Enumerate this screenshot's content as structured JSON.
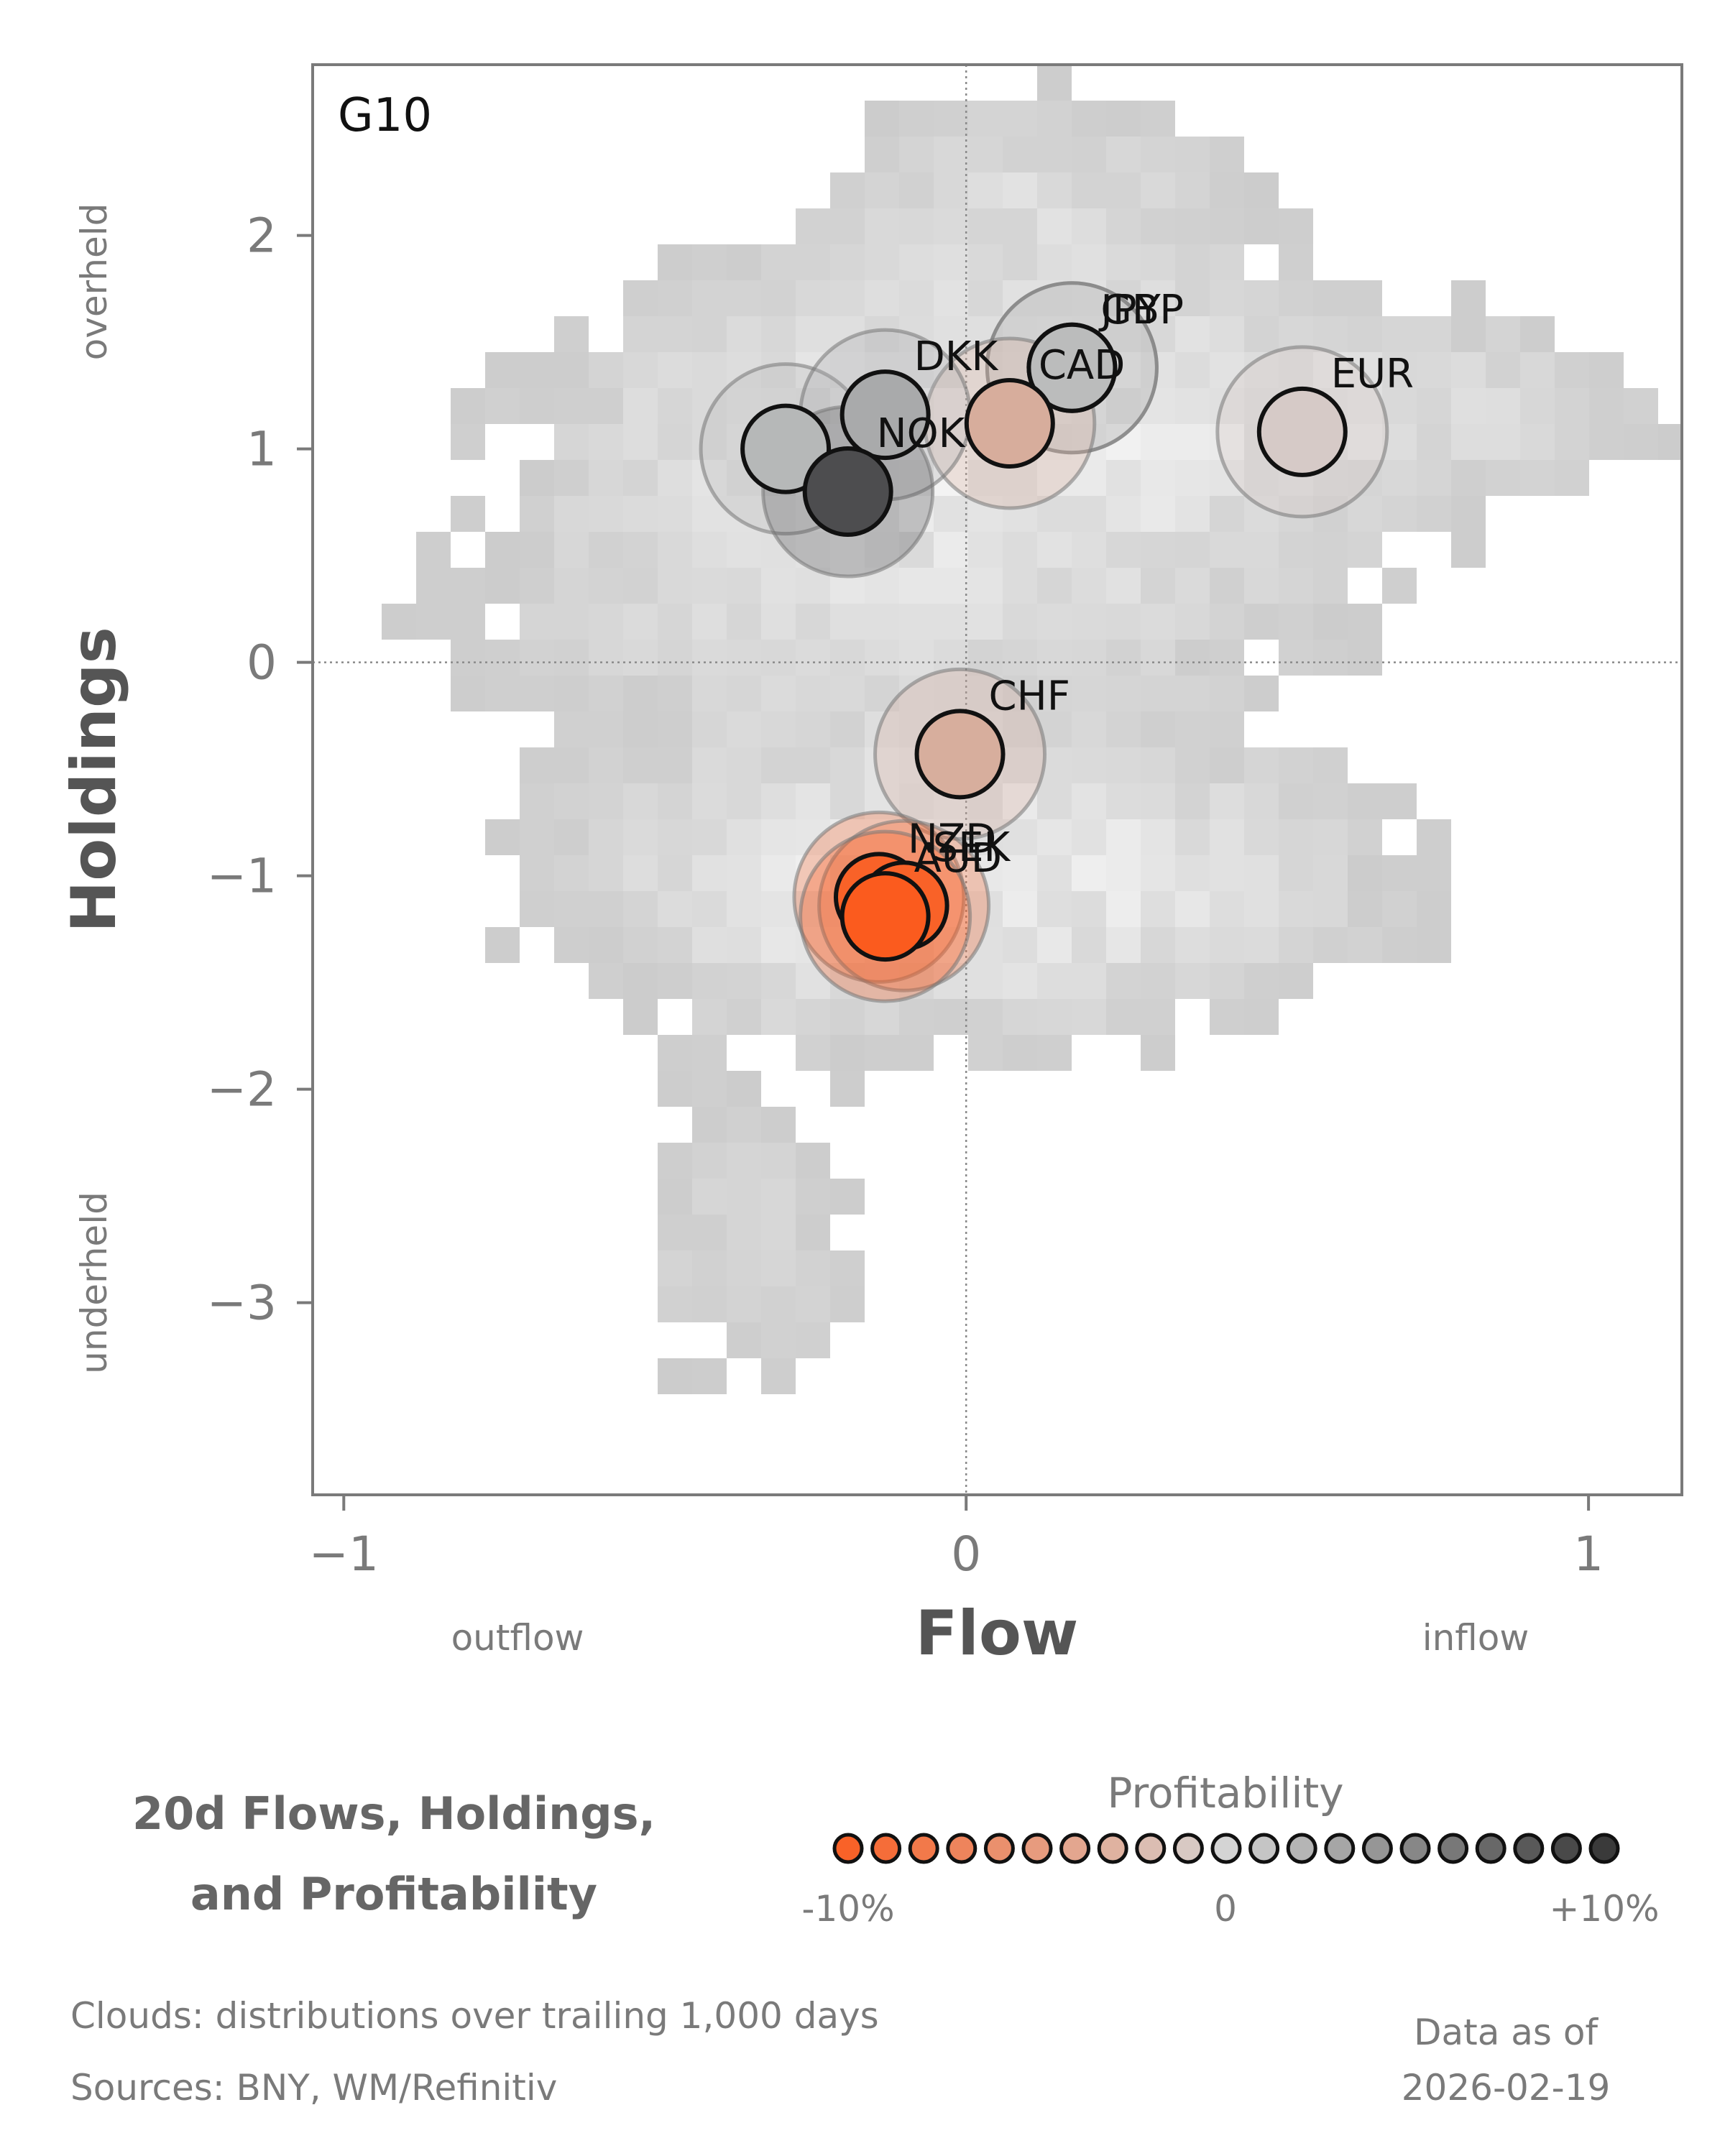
{
  "chart_data": {
    "type": "scatter",
    "panel_label": "G10",
    "xlabel": "Flow",
    "ylabel": "Holdings",
    "x_direction_labels": {
      "negative": "outflow",
      "positive": "inflow"
    },
    "y_direction_labels": {
      "positive": "overheld",
      "negative": "underheld"
    },
    "xlim": [
      -1.05,
      1.15
    ],
    "ylim": [
      -3.9,
      2.8
    ],
    "xticks": [
      {
        "value": -1,
        "label": "−1"
      },
      {
        "value": 0,
        "label": "0"
      },
      {
        "value": 1,
        "label": "1"
      }
    ],
    "yticks": [
      {
        "value": 2,
        "label": "2"
      },
      {
        "value": 1,
        "label": "1"
      },
      {
        "value": 0,
        "label": "0"
      },
      {
        "value": -1,
        "label": "−1"
      },
      {
        "value": -2,
        "label": "−2"
      },
      {
        "value": -3,
        "label": "−3"
      }
    ],
    "reference_lines": {
      "x": 0,
      "y": 0,
      "style": "dotted"
    },
    "points": [
      {
        "label": "JPY",
        "x": 0.17,
        "y": 1.38,
        "profitability": 3,
        "color": "#bbbcbc"
      },
      {
        "label": "GBP",
        "x": 0.17,
        "y": 1.38,
        "profitability": 3,
        "color": "#bbbcbc"
      },
      {
        "label": "CAD",
        "x": 0.07,
        "y": 1.12,
        "profitability": -4,
        "color": "#d7ad9c"
      },
      {
        "label": "DKK",
        "x": -0.13,
        "y": 1.16,
        "profitability": 4,
        "color": "#a9aaab"
      },
      {
        "label": "NOK",
        "x": -0.19,
        "y": 0.8,
        "profitability": 10,
        "color": "#4d4d4f"
      },
      {
        "label": "EUR",
        "x": 0.54,
        "y": 1.08,
        "profitability": -1,
        "color": "#d6cac7"
      },
      {
        "label": "CHF",
        "x": -0.01,
        "y": -0.43,
        "profitability": -4,
        "color": "#d7ae9d"
      },
      {
        "label": "NZD",
        "x": -0.14,
        "y": -1.1,
        "profitability": -9,
        "color": "#f96228"
      },
      {
        "label": "SEK",
        "x": -0.1,
        "y": -1.14,
        "profitability": -9,
        "color": "#f96228"
      },
      {
        "label": "AUD",
        "x": -0.13,
        "y": -1.19,
        "profitability": -10,
        "color": "#fb5b1e"
      }
    ],
    "extra_bubbles": [
      {
        "x": -0.29,
        "y": 1.0,
        "profitability": 4,
        "color": "#b6b8b8"
      }
    ],
    "cloud": {
      "description_shown_in_footnote": true,
      "color_scale": [
        "#cccccc",
        "#f2f2f2"
      ]
    },
    "colorbar": {
      "title": "Profitability",
      "min_label": "-10%",
      "mid_label": "0",
      "max_label": "+10%",
      "steps": 21,
      "low_color": "#f96228",
      "mid_color": "#d4d4d4",
      "high_color": "#3a3a3a"
    }
  },
  "footer": {
    "title_line1": "20d Flows, Holdings,",
    "title_line2": "and Profitability",
    "clouds_note": "Clouds:  distributions over trailing 1,000 days",
    "sources_note": "Sources:  BNY, WM/Refinitiv",
    "asof_label": "Data as of",
    "asof_date": "2026-02-19"
  }
}
